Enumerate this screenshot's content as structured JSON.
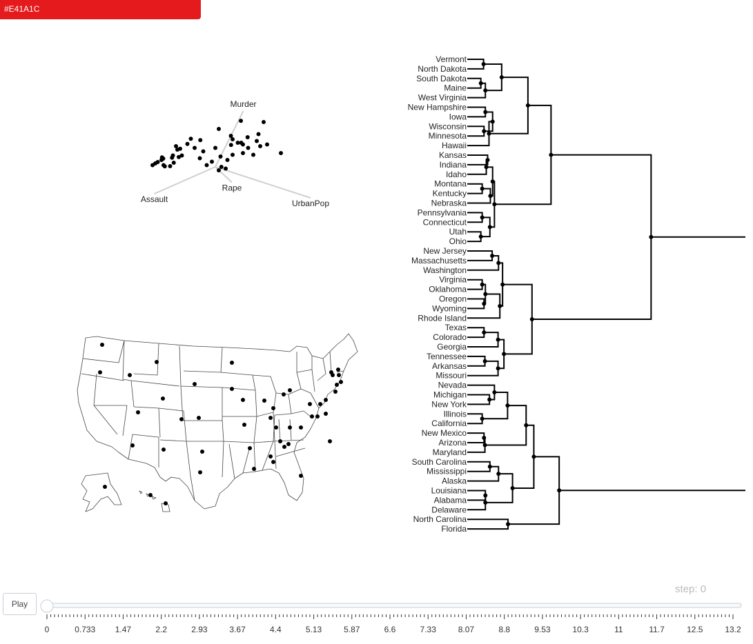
{
  "color_button": {
    "label": "#E41A1C",
    "color": "#E41A1C"
  },
  "animation": {
    "play_label": "Play",
    "step_prefix": "step: ",
    "step_value": "0",
    "ticks": [
      "0",
      "0.733",
      "1.47",
      "2.2",
      "2.93",
      "3.67",
      "4.4",
      "5.13",
      "5.87",
      "6.6",
      "7.33",
      "8.07",
      "8.8",
      "9.53",
      "10.3",
      "11",
      "11.7",
      "12.5",
      "13.2"
    ]
  },
  "chart_data": [
    {
      "type": "scatter",
      "subtype": "biplot",
      "description_points": "PCA scores of 50 US states (USArrests)",
      "loadings": [
        {
          "name": "Murder",
          "dx": 1.35,
          "dy": 2.7
        },
        {
          "name": "Assault",
          "dx": -2.95,
          "dy": -1.3
        },
        {
          "name": "Rape",
          "dx": 0.8,
          "dy": -0.75
        },
        {
          "name": "UrbanPop",
          "dx": 4.6,
          "dy": -1.5
        }
      ],
      "points": [
        [
          1.48,
          2.67
        ],
        [
          1.87,
          1.72
        ],
        [
          0.91,
          1.27
        ],
        [
          -1.42,
          1.63
        ],
        [
          -0.87,
          1.55
        ],
        [
          -1.62,
          1.33
        ],
        [
          -1.2,
          1.1
        ],
        [
          -2.04,
          1.05
        ],
        [
          -2.28,
          1.2
        ],
        [
          -2.2,
          1.0
        ],
        [
          -2.46,
          0.66
        ],
        [
          -2.51,
          0.53
        ],
        [
          -2.12,
          0.57
        ],
        [
          -1.94,
          0.66
        ],
        [
          -3.02,
          0.48
        ],
        [
          -3.12,
          0.4
        ],
        [
          -3.09,
          0.55
        ],
        [
          -3.0,
          0.1
        ],
        [
          -2.62,
          0.04
        ],
        [
          -2.41,
          0.24
        ],
        [
          -3.48,
          0.2
        ],
        [
          -2.93,
          0.03
        ],
        [
          -3.34,
          0.28
        ],
        [
          -3.64,
          0.1
        ],
        [
          0.0,
          1.1
        ],
        [
          0.3,
          0.6
        ],
        [
          0.7,
          0.4
        ],
        [
          1.0,
          1.6
        ],
        [
          1.3,
          1.4
        ],
        [
          1.5,
          1.4
        ],
        [
          1.6,
          1.3
        ],
        [
          1.6,
          0.8
        ],
        [
          1.9,
          1.1
        ],
        [
          2.2,
          0.7
        ],
        [
          2.4,
          1.5
        ],
        [
          2.5,
          1.9
        ],
        [
          2.6,
          1.2
        ],
        [
          2.8,
          2.6
        ],
        [
          3.0,
          1.3
        ],
        [
          3.8,
          0.8
        ],
        [
          -0.7,
          0.9
        ],
        [
          -0.2,
          0.3
        ],
        [
          0.2,
          -0.2
        ],
        [
          0.35,
          0.0
        ],
        [
          0.6,
          -0.1
        ],
        [
          1.0,
          0.7
        ],
        [
          0.2,
          2.2
        ],
        [
          0.9,
          1.8
        ],
        [
          -0.5,
          0.1
        ],
        [
          -0.9,
          0.5
        ]
      ]
    },
    {
      "type": "map",
      "description": "Contiguous US states, Alaska and Hawaii with a marker per state"
    },
    {
      "type": "dendrogram",
      "leaves": [
        "Vermont",
        "North Dakota",
        "South Dakota",
        "Maine",
        "West Virginia",
        "New Hampshire",
        "Iowa",
        "Wisconsin",
        "Minnesota",
        "Hawaii",
        "Kansas",
        "Indiana",
        "Idaho",
        "Montana",
        "Kentucky",
        "Nebraska",
        "Pennsylvania",
        "Connecticut",
        "Utah",
        "Ohio",
        "New Jersey",
        "Massachusetts",
        "Washington",
        "Virginia",
        "Oklahoma",
        "Oregon",
        "Wyoming",
        "Rhode Island",
        "Texas",
        "Colorado",
        "Georgia",
        "Tennessee",
        "Arkansas",
        "Missouri",
        "Nevada",
        "Michigan",
        "New York",
        "Illinois",
        "California",
        "New Mexico",
        "Arizona",
        "Maryland",
        "South Carolina",
        "Mississippi",
        "Alaska",
        "Louisiana",
        "Alabama",
        "Delaware",
        "North Carolina",
        "Florida"
      ],
      "merges": [
        [
          [
            0
          ],
          [
            1
          ],
          0.36
        ],
        [
          [
            2
          ],
          [
            3
          ],
          0.3
        ],
        [
          [
            5
          ],
          [
            6
          ],
          0.4
        ],
        [
          [
            7
          ],
          [
            8
          ],
          0.37
        ],
        [
          [
            10
          ],
          [
            11
          ],
          0.45
        ],
        [
          [
            13
          ],
          [
            14
          ],
          0.33
        ],
        [
          [
            16
          ],
          [
            17
          ],
          0.33
        ],
        [
          [
            18
          ],
          [
            19
          ],
          0.3
        ],
        [
          [
            20
          ],
          [
            21
          ],
          0.55
        ],
        [
          [
            23
          ],
          [
            24
          ],
          0.33
        ],
        [
          [
            25
          ],
          [
            26
          ],
          0.37
        ],
        [
          [
            28
          ],
          [
            29
          ],
          0.37
        ],
        [
          [
            31
          ],
          [
            32
          ],
          0.39
        ],
        [
          [
            35
          ],
          [
            36
          ],
          0.49
        ],
        [
          [
            37
          ],
          [
            38
          ],
          0.33
        ],
        [
          [
            39
          ],
          [
            40
          ],
          0.37
        ],
        [
          [
            42
          ],
          [
            43
          ],
          0.5
        ],
        [
          [
            45
          ],
          [
            46
          ],
          0.4
        ],
        [
          [
            48
          ],
          [
            49
          ],
          0.9
        ],
        [
          [
            2,
            3
          ],
          [
            4
          ],
          0.4
        ],
        [
          [
            5,
            6
          ],
          [
            7,
            8
          ],
          0.56
        ],
        [
          [
            10,
            11
          ],
          [
            12
          ],
          0.42
        ],
        [
          [
            13,
            14
          ],
          [
            15
          ],
          0.51
        ],
        [
          [
            16,
            17
          ],
          [
            18,
            19
          ],
          0.5
        ],
        [
          [
            20,
            21
          ],
          [
            22
          ],
          0.69
        ],
        [
          [
            23,
            24
          ],
          [
            25,
            26
          ],
          0.4
        ],
        [
          [
            28,
            29
          ],
          [
            30
          ],
          0.68
        ],
        [
          [
            31,
            32
          ],
          [
            33
          ],
          0.68
        ],
        [
          [
            34
          ],
          [
            35,
            36
          ],
          0.6
        ],
        [
          [
            39,
            40
          ],
          [
            41
          ],
          0.39
        ],
        [
          [
            42,
            43
          ],
          [
            44
          ],
          0.69
        ],
        [
          [
            45,
            46
          ],
          [
            47
          ],
          0.4
        ],
        [
          [
            0,
            1
          ],
          [
            2,
            3,
            4
          ],
          0.76
        ],
        [
          [
            5,
            6,
            7,
            8
          ],
          [
            9
          ],
          0.48
        ],
        [
          [
            10,
            11,
            12
          ],
          [
            13,
            14,
            15
          ],
          0.56
        ],
        [
          [
            23,
            24,
            25,
            26
          ],
          [
            27
          ],
          0.72
        ],
        [
          [
            28,
            29,
            30
          ],
          [
            31,
            32,
            33
          ],
          0.81
        ],
        [
          [
            34,
            35,
            36
          ],
          [
            37,
            38
          ],
          0.89
        ],
        [
          [
            42,
            43,
            44
          ],
          [
            45,
            46,
            47
          ],
          1.0
        ],
        [
          [
            0,
            1,
            2,
            3,
            4
          ],
          [
            5,
            6,
            7,
            8,
            9
          ],
          1.34
        ],
        [
          [
            10,
            11,
            12,
            13,
            14,
            15
          ],
          [
            16,
            17,
            18,
            19
          ],
          0.6
        ],
        [
          [
            20,
            21,
            22
          ],
          [
            23,
            24,
            25,
            26,
            27
          ],
          0.78
        ],
        [
          [
            34,
            35,
            36,
            37,
            38
          ],
          [
            39,
            40,
            41
          ],
          1.3
        ],
        [
          [
            0,
            1,
            2,
            3,
            4,
            5,
            6,
            7,
            8,
            9
          ],
          [
            10,
            11,
            12,
            13,
            14,
            15,
            16,
            17,
            18,
            19
          ],
          1.85
        ],
        [
          [
            20,
            21,
            22,
            23,
            24,
            25,
            26,
            27
          ],
          [
            28,
            29,
            30,
            31,
            32,
            33
          ],
          1.43
        ],
        [
          [
            34,
            35,
            36,
            37,
            38,
            39,
            40,
            41
          ],
          [
            42,
            43,
            44,
            45,
            46,
            47
          ],
          1.47
        ],
        [
          [
            34,
            35,
            36,
            37,
            38,
            39,
            40,
            41,
            42,
            43,
            44,
            45,
            46,
            47
          ],
          [
            48,
            49
          ],
          2.03
        ],
        [
          [
            0,
            1,
            2,
            3,
            4,
            5,
            6,
            7,
            8,
            9,
            10,
            11,
            12,
            13,
            14,
            15,
            16,
            17,
            18,
            19
          ],
          [
            20,
            21,
            22,
            23,
            24,
            25,
            26,
            27,
            28,
            29,
            30,
            31,
            32,
            33
          ],
          4.06
        ],
        [
          [
            0,
            1,
            2,
            3,
            4,
            5,
            6,
            7,
            8,
            9,
            10,
            11,
            12,
            13,
            14,
            15,
            16,
            17,
            18,
            19,
            20,
            21,
            22,
            23,
            24,
            25,
            26,
            27,
            28,
            29,
            30,
            31,
            32,
            33
          ],
          [
            34,
            35,
            36,
            37,
            38,
            39,
            40,
            41,
            42,
            43,
            44,
            45,
            46,
            47,
            48,
            49
          ],
          8.2
        ]
      ]
    }
  ]
}
